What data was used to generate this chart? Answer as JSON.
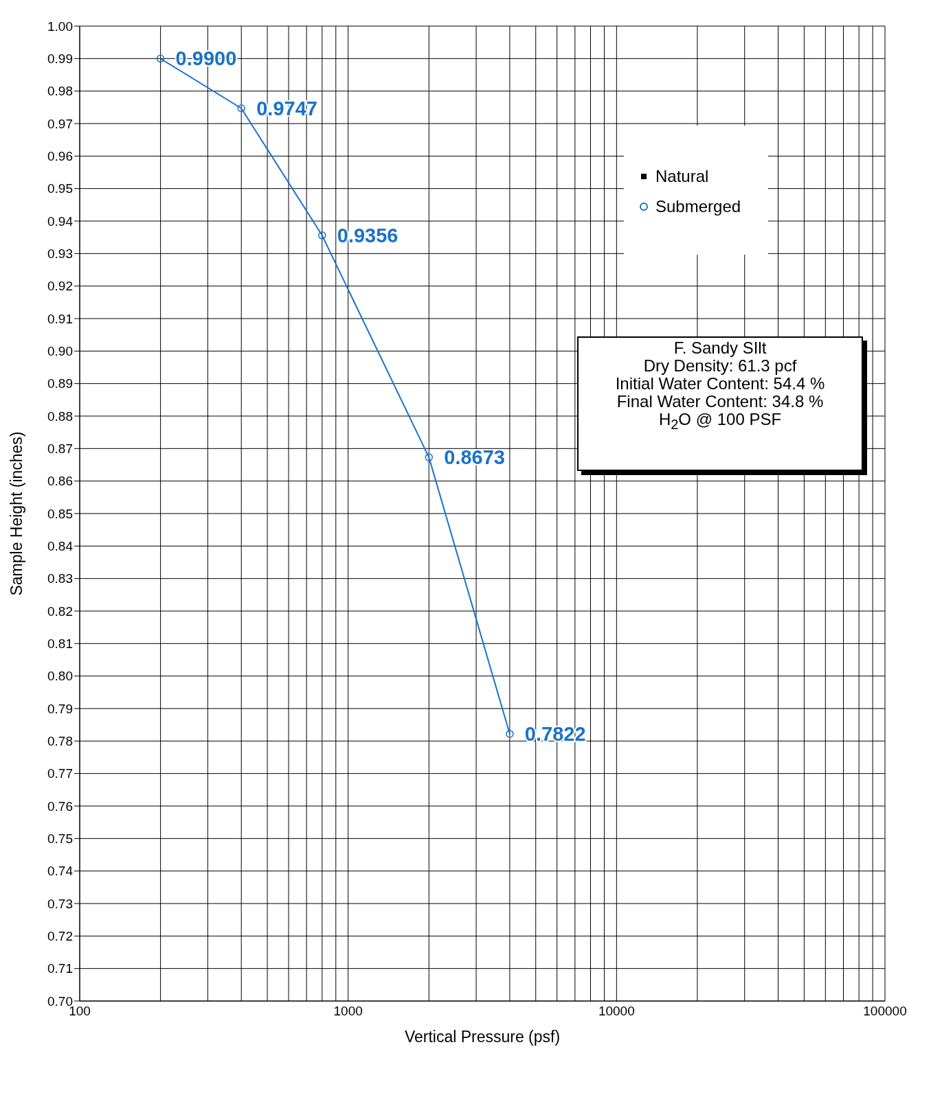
{
  "chart_data": {
    "type": "line",
    "xlabel": "Vertical Pressure  (psf)",
    "ylabel": "Sample Height (inches)",
    "log": "x",
    "x": [
      200,
      400,
      800,
      2000,
      4000
    ],
    "series": [
      {
        "name": "Natural",
        "color": "#000000",
        "marker": "square",
        "values": [
          null,
          null,
          null,
          null,
          null
        ]
      },
      {
        "name": "Submerged",
        "color": "#1a72c8",
        "marker": "circle",
        "values": [
          0.99,
          0.9747,
          0.9356,
          0.8673,
          0.7822
        ],
        "value_labels": [
          "0.9900",
          "0.9747",
          "0.9356",
          "0.8673",
          "0.7822"
        ]
      }
    ],
    "xlim": [
      100,
      100000
    ],
    "xticks": [
      100,
      {
        "value": 200,
        "label": null
      },
      {
        "value": 300,
        "label": null
      },
      {
        "value": 400,
        "label": null
      },
      {
        "value": 500,
        "label": null
      },
      {
        "value": 600,
        "label": null
      },
      {
        "value": 700,
        "label": null
      },
      {
        "value": 800,
        "label": null
      },
      {
        "value": 900,
        "label": null
      },
      1000,
      {
        "value": 2000,
        "label": null
      },
      {
        "value": 3000,
        "label": null
      },
      {
        "value": 4000,
        "label": null
      },
      {
        "value": 5000,
        "label": null
      },
      {
        "value": 6000,
        "label": null
      },
      {
        "value": 7000,
        "label": null
      },
      {
        "value": 8000,
        "label": null
      },
      {
        "value": 9000,
        "label": null
      },
      10000,
      {
        "value": 20000,
        "label": null
      },
      {
        "value": 30000,
        "label": null
      },
      {
        "value": 40000,
        "label": null
      },
      {
        "value": 50000,
        "label": null
      },
      {
        "value": 60000,
        "label": null
      },
      {
        "value": 70000,
        "label": null
      },
      {
        "value": 80000,
        "label": null
      },
      {
        "value": 90000,
        "label": null
      },
      100000
    ],
    "ylim": [
      0.7,
      1.0
    ],
    "yticks": [
      {
        "value": 0.7,
        "label": "0.70"
      },
      {
        "value": 0.71,
        "label": "0.71"
      },
      {
        "value": 0.72,
        "label": "0.72"
      },
      {
        "value": 0.73,
        "label": "0.73"
      },
      {
        "value": 0.74,
        "label": "0.74"
      },
      {
        "value": 0.75,
        "label": "0.75"
      },
      {
        "value": 0.76,
        "label": "0.76"
      },
      {
        "value": 0.77,
        "label": "0.77"
      },
      {
        "value": 0.78,
        "label": "0.78"
      },
      {
        "value": 0.79,
        "label": "0.79"
      },
      {
        "value": 0.8,
        "label": "0.80"
      },
      {
        "value": 0.81,
        "label": "0.81"
      },
      {
        "value": 0.82,
        "label": "0.82"
      },
      {
        "value": 0.83,
        "label": "0.83"
      },
      {
        "value": 0.84,
        "label": "0.84"
      },
      {
        "value": 0.85,
        "label": "0.85"
      },
      {
        "value": 0.86,
        "label": "0.86"
      },
      {
        "value": 0.87,
        "label": "0.87"
      },
      {
        "value": 0.88,
        "label": "0.88"
      },
      {
        "value": 0.89,
        "label": "0.89"
      },
      {
        "value": 0.9,
        "label": "0.90"
      },
      {
        "value": 0.91,
        "label": "0.91"
      },
      {
        "value": 0.92,
        "label": "0.92"
      },
      {
        "value": 0.93,
        "label": "0.93"
      },
      {
        "value": 0.94,
        "label": "0.94"
      },
      {
        "value": 0.95,
        "label": "0.95"
      },
      {
        "value": 0.96,
        "label": "0.96"
      },
      {
        "value": 0.97,
        "label": "0.97"
      },
      {
        "value": 0.98,
        "label": "0.98"
      },
      {
        "value": 0.99,
        "label": "0.99"
      },
      {
        "value": 1.0,
        "label": "1.00"
      }
    ],
    "grid": true,
    "legend": "top right",
    "line_style": "solid",
    "annotations": [
      "F. Sandy SIlt",
      "Dry Density: 61.3 pcf",
      "Initial Water Content: 54.4 %",
      "Final Water Content: 34.8 %",
      "H$_{2}$O @ 100 PSF"
    ]
  }
}
